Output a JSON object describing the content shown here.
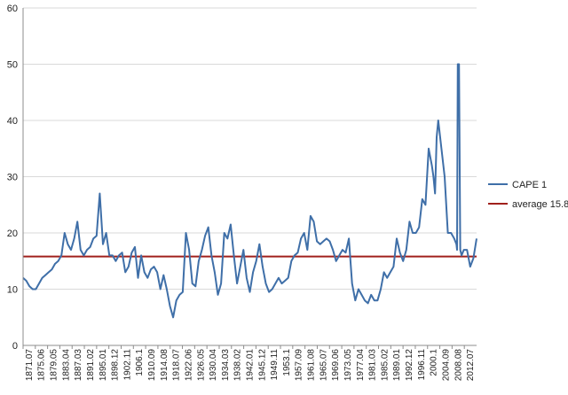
{
  "chart_data": {
    "type": "line",
    "title": "",
    "xlabel": "",
    "ylabel": "",
    "ylim": [
      0,
      60
    ],
    "y_ticks": [
      "0",
      "10",
      "20",
      "30",
      "40",
      "50",
      "60"
    ],
    "x_tick_labels": [
      "1871.07",
      "1875.06",
      "1879.05",
      "1883.04",
      "1887.03",
      "1891.02",
      "1895.01",
      "1898.12",
      "1902.11",
      "1906.1",
      "1910.09",
      "1914.08",
      "1918.07",
      "1922.06",
      "1926.05",
      "1930.04",
      "1934.03",
      "1938.02",
      "1942.01",
      "1945.12",
      "1949.11",
      "1953.1",
      "1957.09",
      "1961.08",
      "1965.07",
      "1969.06",
      "1973.05",
      "1977.04",
      "1981.03",
      "1985.02",
      "1989.01",
      "1992.12",
      "1996.11",
      "2000.1",
      "2004.09",
      "2008.08",
      "2012.07"
    ],
    "grid": "horizontal",
    "legend_position": "right",
    "colors": {
      "cape": "#3f6fa8",
      "average": "#a0201c",
      "grid": "#d9d9d9",
      "axis": "#8c8c8c"
    },
    "series": [
      {
        "name": "CAPE 1",
        "x": [
          1871.5,
          1872.5,
          1873.5,
          1874.5,
          1875.5,
          1876.5,
          1877.5,
          1878.5,
          1879.5,
          1880.5,
          1881.5,
          1882.5,
          1883.5,
          1884.5,
          1885.5,
          1886.5,
          1887.5,
          1888.5,
          1889.5,
          1890.5,
          1891.5,
          1892.5,
          1893.5,
          1894.5,
          1895.5,
          1896.5,
          1897.5,
          1898.5,
          1899.5,
          1900.5,
          1901.5,
          1902.5,
          1903.5,
          1904.5,
          1905.5,
          1906.5,
          1907.5,
          1908.5,
          1909.5,
          1910.5,
          1911.5,
          1912.5,
          1913.5,
          1914.5,
          1915.5,
          1916.5,
          1917.5,
          1918.5,
          1919.5,
          1920.5,
          1921.5,
          1922.5,
          1923.5,
          1924.5,
          1925.5,
          1926.5,
          1927.5,
          1928.5,
          1929.5,
          1930.5,
          1931.5,
          1932.5,
          1933.5,
          1934.5,
          1935.5,
          1936.5,
          1937.5,
          1938.5,
          1939.5,
          1940.5,
          1941.5,
          1942.5,
          1943.5,
          1944.5,
          1945.5,
          1946.5,
          1947.5,
          1948.5,
          1949.5,
          1950.5,
          1951.5,
          1952.5,
          1953.5,
          1954.5,
          1955.5,
          1956.5,
          1957.5,
          1958.5,
          1959.5,
          1960.5,
          1961.5,
          1962.5,
          1963.5,
          1964.5,
          1965.5,
          1966.5,
          1967.5,
          1968.5,
          1969.5,
          1970.5,
          1971.5,
          1972.5,
          1973.5,
          1974.5,
          1975.5,
          1976.5,
          1977.5,
          1978.5,
          1979.5,
          1980.5,
          1981.5,
          1982.5,
          1983.5,
          1984.5,
          1985.5,
          1986.5,
          1987.5,
          1988.5,
          1989.5,
          1990.5,
          1991.5,
          1992.5,
          1993.5,
          1994.5,
          1995.5,
          1996.5,
          1997.5,
          1998.5,
          1999.5,
          2000.0,
          2000.5,
          2001.0,
          2001.5,
          2002.5,
          2003.5,
          2004.5,
          2005.5,
          2006.5,
          2007.2,
          2007.4,
          2007.6,
          2008.0,
          2008.4,
          2008.8,
          2009.5,
          2010.5,
          2011.5,
          2012.5,
          2013.5
        ],
        "values": [
          12,
          11.5,
          10.5,
          10,
          10,
          11,
          12,
          12.5,
          13,
          13.5,
          14.5,
          15,
          16,
          20,
          18,
          17,
          19,
          22,
          17,
          16,
          17,
          17.5,
          19,
          19.5,
          27,
          18,
          20,
          16,
          16,
          15,
          16,
          16.5,
          13,
          14,
          16.5,
          17.5,
          12,
          16,
          13,
          12,
          13.5,
          14,
          13,
          10,
          12.5,
          10,
          7,
          5,
          8,
          9,
          9.5,
          20,
          17,
          11,
          10.5,
          15,
          17,
          19.5,
          21,
          16,
          13,
          9,
          11,
          20,
          19,
          21.5,
          16,
          11,
          14,
          17,
          12,
          9.5,
          13,
          15,
          18,
          14,
          11,
          9.5,
          10,
          11,
          12,
          11,
          11.5,
          12,
          15,
          16,
          16.5,
          19,
          20,
          17,
          23,
          22,
          18.5,
          18,
          18.5,
          19,
          18.5,
          17,
          15,
          16,
          17,
          16.5,
          19,
          11,
          8,
          10,
          9,
          8,
          7.5,
          9,
          8,
          8,
          10,
          13,
          12,
          13,
          14,
          19,
          16.5,
          15,
          17,
          22,
          20,
          20,
          21,
          26,
          25,
          35,
          32,
          30,
          27,
          37,
          40,
          35,
          30,
          20,
          20,
          19,
          18,
          17,
          50,
          50,
          17,
          16,
          17,
          17,
          14,
          15.5,
          19
        ]
      },
      {
        "name": "average 15.8",
        "values": [
          15.8
        ]
      }
    ]
  }
}
